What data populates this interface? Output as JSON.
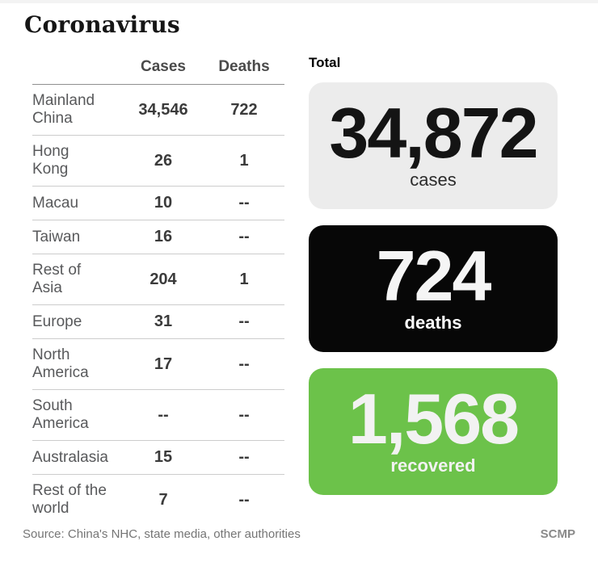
{
  "page": {
    "title": "Coronavirus",
    "source": "Source: China's NHC, state media, other authorities",
    "credit": "SCMP"
  },
  "table": {
    "headers": {
      "cases": "Cases",
      "deaths": "Deaths"
    },
    "rows": [
      {
        "region": "Mainland\nChina",
        "cases": "34,546",
        "deaths": "722"
      },
      {
        "region": "Hong\nKong",
        "cases": "26",
        "deaths": "1"
      },
      {
        "region": "Macau",
        "cases": "10",
        "deaths": "--"
      },
      {
        "region": "Taiwan",
        "cases": "16",
        "deaths": "--"
      },
      {
        "region": "Rest of\nAsia",
        "cases": "204",
        "deaths": "1"
      },
      {
        "region": "Europe",
        "cases": "31",
        "deaths": "--"
      },
      {
        "region": "North\nAmerica",
        "cases": "17",
        "deaths": "--"
      },
      {
        "region": "South\nAmerica",
        "cases": "--",
        "deaths": "--"
      },
      {
        "region": "Australasia",
        "cases": "15",
        "deaths": "--"
      },
      {
        "region": "Rest of the\nworld",
        "cases": "7",
        "deaths": "--"
      }
    ]
  },
  "totals": {
    "label": "Total",
    "cards": [
      {
        "value": "34,872",
        "label": "cases",
        "bg": "#ececec",
        "fg": "#141414"
      },
      {
        "value": "724",
        "label": "deaths",
        "bg": "#070707",
        "fg": "#f5f5f5"
      },
      {
        "value": "1,568",
        "label": "recovered",
        "bg": "#6cc24a",
        "fg": "#f2f2f2"
      }
    ]
  },
  "colors": {
    "background": "#ffffff",
    "top_strip": "#f3f3f3",
    "row_divider": "#cccccc",
    "header_underline": "#8f8f8f",
    "region_text": "#58595b",
    "number_text": "#3b3b3b",
    "recovered_green": "#6cc24a"
  },
  "chart_data": {
    "type": "table",
    "title": "Coronavirus",
    "columns": [
      "Region",
      "Cases",
      "Deaths"
    ],
    "rows": [
      [
        "Mainland China",
        34546,
        722
      ],
      [
        "Hong Kong",
        26,
        1
      ],
      [
        "Macau",
        10,
        null
      ],
      [
        "Taiwan",
        16,
        null
      ],
      [
        "Rest of Asia",
        204,
        1
      ],
      [
        "Europe",
        31,
        null
      ],
      [
        "North America",
        17,
        null
      ],
      [
        "South America",
        null,
        null
      ],
      [
        "Australasia",
        15,
        null
      ],
      [
        "Rest of the world",
        7,
        null
      ]
    ],
    "totals": {
      "cases": 34872,
      "deaths": 724,
      "recovered": 1568
    },
    "source": "Source: China's NHC, state media, other authorities",
    "credit": "SCMP"
  }
}
